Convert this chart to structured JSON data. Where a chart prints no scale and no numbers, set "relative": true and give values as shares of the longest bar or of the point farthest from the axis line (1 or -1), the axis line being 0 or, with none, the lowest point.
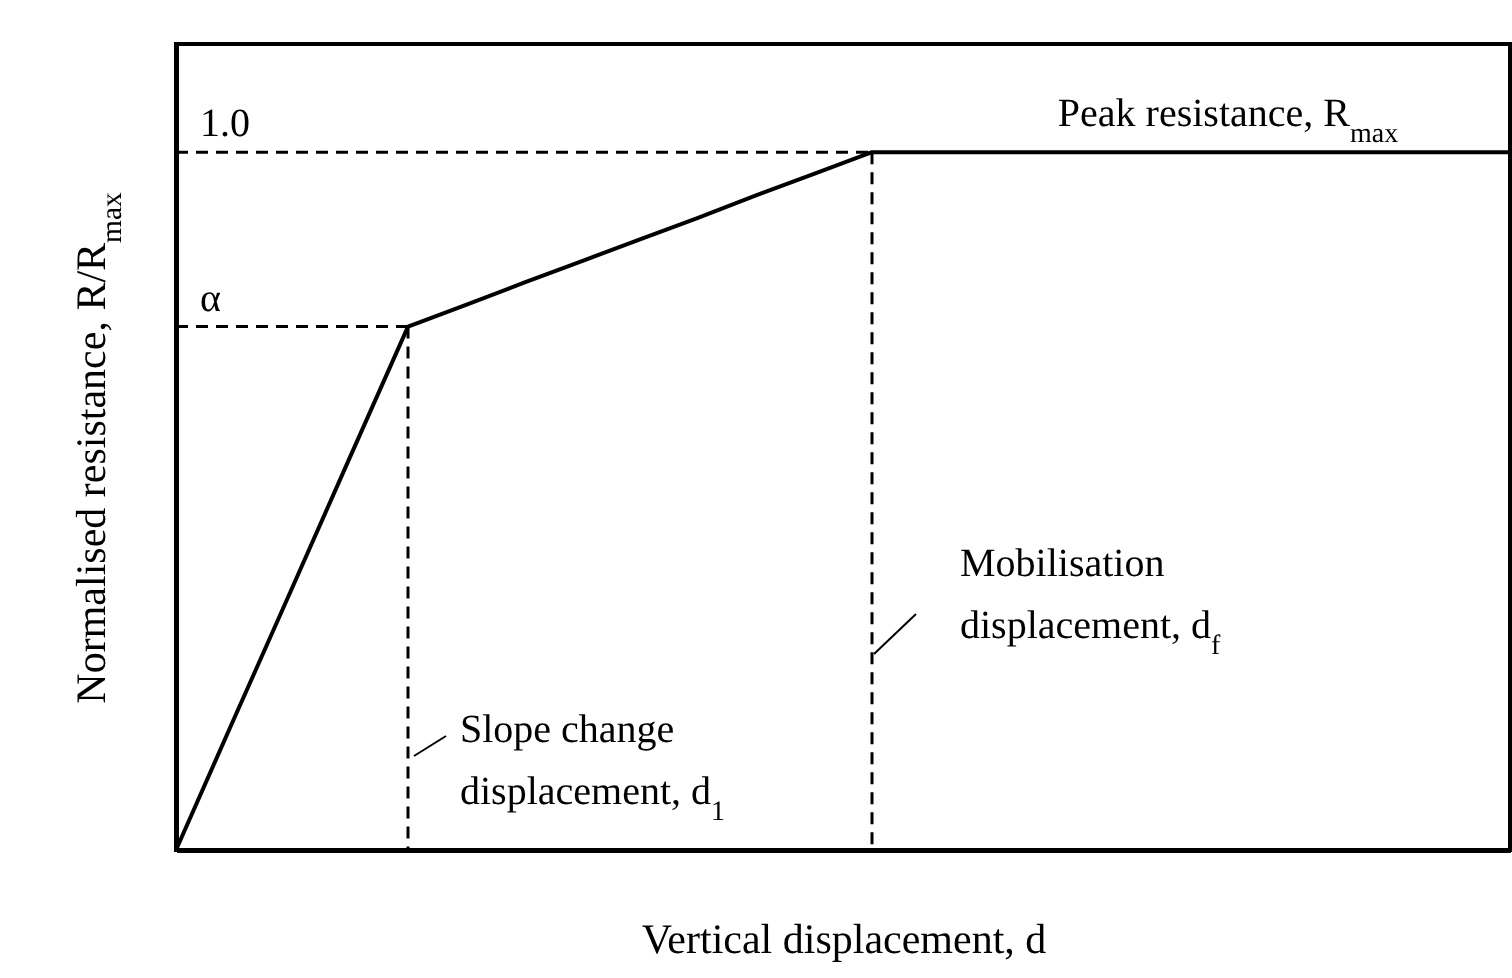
{
  "chart_data": {
    "type": "line",
    "relative": true,
    "xlabel": "Vertical displacement, d",
    "ylabel": "Normalised resistance, R/R$_{max}$",
    "categories": [
      null,
      null,
      null,
      null,
      null,
      null,
      null,
      null,
      null,
      null,
      null,
      null,
      null,
      null,
      null,
      null,
      null,
      null,
      null,
      null,
      null,
      null,
      null,
      null
    ],
    "line_style": "solid",
    "series": [
      {
        "color": "#000000",
        "values": [
          0,
          0.188,
          0.375,
          0.563,
          0.75,
          0.781,
          0.813,
          0.844,
          0.875,
          0.906,
          0.938,
          0.969,
          1,
          1,
          1,
          1,
          1,
          1,
          1,
          1,
          1,
          1,
          1,
          1
        ]
      }
    ],
    "ref_lines": [
      {
        "axis": "y",
        "value": 1,
        "label": "1.0",
        "line_style": "dashed"
      },
      {
        "axis": "y",
        "value": 0.75,
        "label": "α",
        "line_style": "dashed"
      }
    ],
    "annotations": [
      "Peak resistance, R$_{max}$",
      "Mobilisation\ndisplacement, d$_{f}$",
      "Slope change\ndisplacement, d$_{1}$"
    ]
  }
}
